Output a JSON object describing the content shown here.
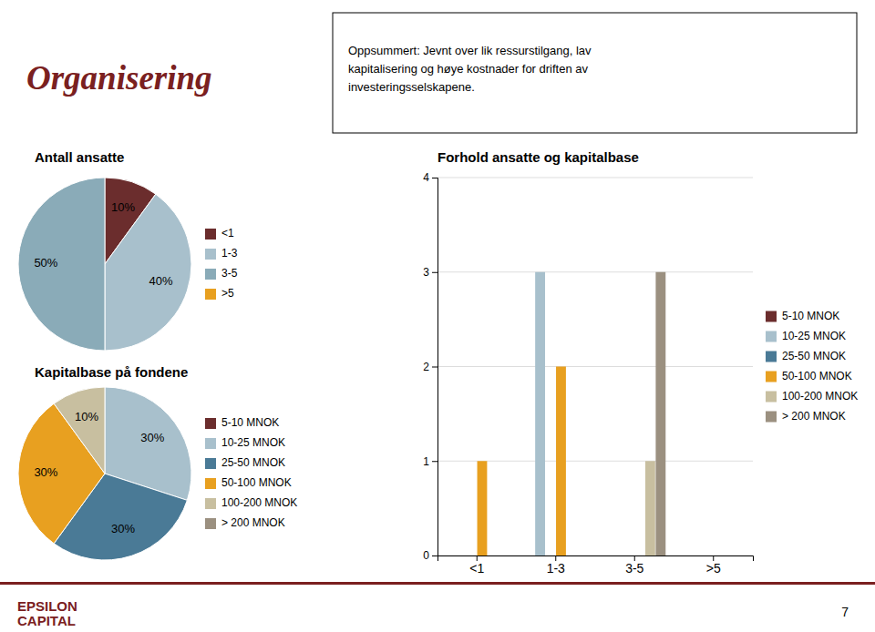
{
  "title": "Organisering",
  "annotations": [
    "Oppsummert: Jevnt over lik ressurstilgang,  lav\nkapitalisering og høye kostnader for driften av\ninvesteringsselskapene.",
    "EPSILON",
    "CAPITAL",
    "7"
  ],
  "chart_data": [
    {
      "type": "pie",
      "title": "Antall ansatte",
      "categories": [
        "<1",
        "1-3",
        "3-5",
        ">5"
      ],
      "values": [
        10,
        40,
        50,
        null
      ],
      "value_labels": [
        "10%",
        "40%",
        "50%",
        null
      ],
      "colors": [
        "#6B2D2D",
        "#A8C0CC",
        "#8AABB8",
        "#E8A020"
      ],
      "data_labels": true
    },
    {
      "type": "pie",
      "title": "Kapitalbase på fondene",
      "categories": [
        "5-10 MNOK",
        "10-25 MNOK",
        "25-50 MNOK",
        "50-100 MNOK",
        "100-200 MNOK",
        "> 200 MNOK"
      ],
      "values": [
        null,
        30,
        30,
        30,
        10,
        null
      ],
      "value_labels": [
        null,
        "30%",
        "30%",
        "30%",
        "10%",
        null
      ],
      "colors": [
        "#6B2D2D",
        "#A8C0CC",
        "#4A7A96",
        "#E8A020",
        "#C8BFA0",
        "#9B9080"
      ],
      "data_labels": true
    },
    {
      "type": "bar",
      "title": "Forhold ansatte og kapitalbase",
      "categories": [
        "<1",
        "1-3",
        "3-5",
        ">5"
      ],
      "series": [
        {
          "name": "5-10 MNOK",
          "color": "#6B2D2D",
          "values": [
            0,
            0,
            0,
            0
          ]
        },
        {
          "name": "10-25 MNOK",
          "color": "#A8C0CC",
          "values": [
            0,
            3,
            0,
            0
          ]
        },
        {
          "name": "25-50 MNOK",
          "color": "#4A7A96",
          "values": [
            0,
            0,
            0,
            0
          ]
        },
        {
          "name": "50-100 MNOK",
          "color": "#E8A020",
          "values": [
            1,
            2,
            0,
            0
          ]
        },
        {
          "name": "100-200 MNOK",
          "color": "#C8BFA0",
          "values": [
            0,
            0,
            1,
            0
          ]
        },
        {
          "name": "> 200 MNOK",
          "color": "#9B9080",
          "values": [
            0,
            0,
            3,
            0
          ]
        }
      ],
      "ylim": [
        0,
        4
      ],
      "yticks": [
        0,
        1,
        2,
        3,
        4
      ],
      "grid": true,
      "legend": "right"
    }
  ]
}
